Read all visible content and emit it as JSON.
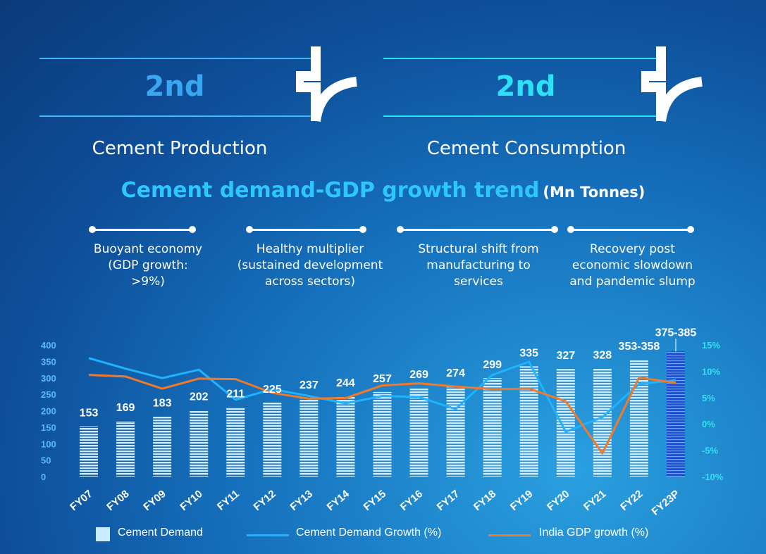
{
  "header": {
    "production": {
      "rank": "2nd",
      "label": "Cement Production",
      "color": "#3aa6f2"
    },
    "consumption": {
      "rank": "2nd",
      "label": "Cement Consumption",
      "color": "#2ee0f5"
    }
  },
  "chart_title": {
    "main": "Cement demand-GDP growth trend",
    "unit": "(Mn Tonnes)"
  },
  "phases": [
    {
      "text": "Buoyant economy\n(GDP growth:\n>9%)"
    },
    {
      "text": "Healthy multiplier\n(sustained development\nacross sectors)"
    },
    {
      "text": "Structural shift from\nmanufacturing to\nservices"
    },
    {
      "text": "Recovery post\neconomic slowdown\nand pandemic  slump"
    }
  ],
  "legend": {
    "demand": "Cement Demand",
    "demand_growth": "Cement Demand Growth (%)",
    "gdp_growth": "India GDP growth (%)"
  },
  "chart_data": {
    "type": "bar",
    "categories": [
      "FY07",
      "FY08",
      "FY09",
      "FY10",
      "FY11",
      "FY12",
      "FY13",
      "FY14",
      "FY15",
      "FY16",
      "FY17",
      "FY18",
      "FY19",
      "FY20",
      "FY21",
      "FY22",
      "FY23P"
    ],
    "series": [
      {
        "name": "Cement Demand",
        "axis": "left",
        "kind": "bar",
        "color": "#c9ecff",
        "values": [
          153,
          169,
          183,
          202,
          211,
          225,
          237,
          244,
          257,
          269,
          274,
          299,
          335,
          327,
          328,
          355.5,
          380
        ],
        "labels": [
          "153",
          "169",
          "183",
          "202",
          "211",
          "225",
          "237",
          "244",
          "257",
          "269",
          "274",
          "299",
          "335",
          "327",
          "328",
          "353-358",
          "375-385"
        ]
      },
      {
        "name": "Cement Demand Growth (%)",
        "axis": "right",
        "kind": "line",
        "color": "#1fb3ff",
        "values": [
          12.5,
          10.5,
          8.7,
          10.3,
          4.6,
          6.6,
          5.3,
          3.9,
          5.3,
          5.1,
          2.8,
          9.3,
          11.8,
          -1.5,
          1.3,
          7.6,
          8.3
        ]
      },
      {
        "name": "India GDP growth (%)",
        "axis": "right",
        "kind": "line",
        "color": "#f07a2a",
        "values": [
          9.3,
          9.0,
          6.7,
          8.6,
          8.5,
          5.9,
          4.8,
          4.9,
          7.3,
          7.7,
          7.1,
          6.6,
          6.7,
          4.3,
          -5.6,
          8.8,
          7.8
        ]
      }
    ],
    "y_left": {
      "ticks": [
        "400",
        "350",
        "300",
        "250",
        "200",
        "150",
        "100",
        "50",
        "0"
      ],
      "range": [
        0,
        400
      ],
      "color": "#5ab8f5"
    },
    "y_right": {
      "ticks": [
        "15%",
        "10%",
        "5%",
        "0%",
        "-5%",
        "-10%"
      ],
      "range": [
        -10,
        15
      ],
      "color": "#35e0f5"
    },
    "highlight_bar_color": "#1a4fd6"
  }
}
